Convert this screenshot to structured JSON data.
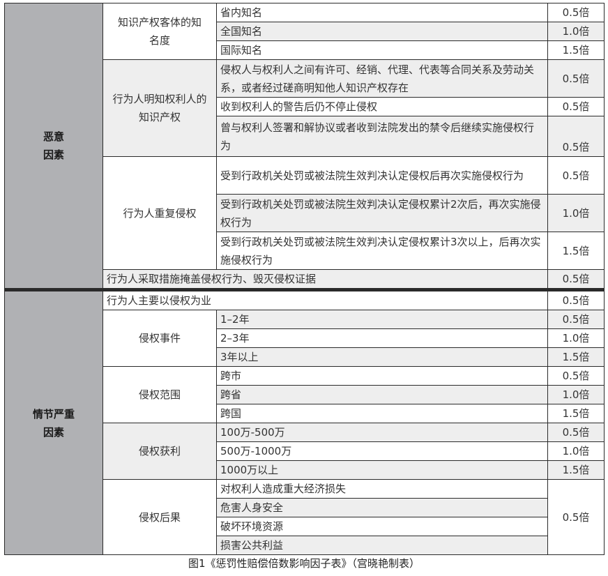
{
  "table": {
    "malice": {
      "label": "恶意\n因素",
      "groups": [
        {
          "label": "知识产权客体的知名度",
          "rows": [
            {
              "text": "省内知名",
              "value": "0.5倍"
            },
            {
              "text": "全国知名",
              "value": "1.0倍"
            },
            {
              "text": "国际知名",
              "value": "1.5倍"
            }
          ]
        },
        {
          "label": "行为人明知权利人的知识产权",
          "rows": [
            {
              "text": "侵权人与权利人之间有许可、经销、代理、代表等合同关系及劳动关系，或者经过磋商明知他人知识产权存在",
              "value": "0.5倍"
            },
            {
              "text": "收到权利人的警告后仍不停止侵权",
              "value": "0.5倍"
            },
            {
              "text": "曾与权利人签署和解协议或者收到法院发出的禁令后继续实施侵权行为",
              "value": "0.5倍"
            }
          ]
        },
        {
          "label": "行为人重复侵权",
          "rows": [
            {
              "text": "受到行政机关处罚或被法院生效判决认定侵权后再次实施侵权行为",
              "value": "0.5倍"
            },
            {
              "text": "受到行政机关处罚或被法院生效判决认定侵权累计2次后，再次实施侵权行为",
              "value": "1.0倍"
            },
            {
              "text": "受到行政机关处罚或被法院生效判决认定侵权累计3次以上，后再次实施侵权行为",
              "value": "1.5倍"
            }
          ]
        }
      ],
      "single": {
        "text": "行为人采取措施掩盖侵权行为、毁灭侵权证据",
        "value": "0.5倍"
      }
    },
    "serious": {
      "label": "情节严重\n因素",
      "single": {
        "text": "行为人主要以侵权为业",
        "value": "0.5倍"
      },
      "groups": [
        {
          "label": "侵权事件",
          "rows": [
            {
              "text": "1–2年",
              "value": "0.5倍"
            },
            {
              "text": "2–3年",
              "value": "1.0倍"
            },
            {
              "text": "3年以上",
              "value": "1.5倍"
            }
          ]
        },
        {
          "label": "侵权范围",
          "rows": [
            {
              "text": "跨市",
              "value": "0.5倍"
            },
            {
              "text": "跨省",
              "value": "1.0倍"
            },
            {
              "text": "跨国",
              "value": "1.5倍"
            }
          ]
        },
        {
          "label": "侵权获利",
          "rows": [
            {
              "text": "100万-500万",
              "value": "0.5倍"
            },
            {
              "text": "500万-1000万",
              "value": "1.0倍"
            },
            {
              "text": "1000万以上",
              "value": "1.5倍"
            }
          ]
        },
        {
          "label": "侵权后果",
          "value": "0.5倍",
          "rows": [
            {
              "text": "对权利人造成重大经济损失"
            },
            {
              "text": "危害人身安全"
            },
            {
              "text": "破坏环境资源"
            },
            {
              "text": "损害公共利益"
            }
          ]
        }
      ]
    }
  },
  "caption": "图1《惩罚性赔偿倍数影响因子表》（宫晓艳制表）"
}
